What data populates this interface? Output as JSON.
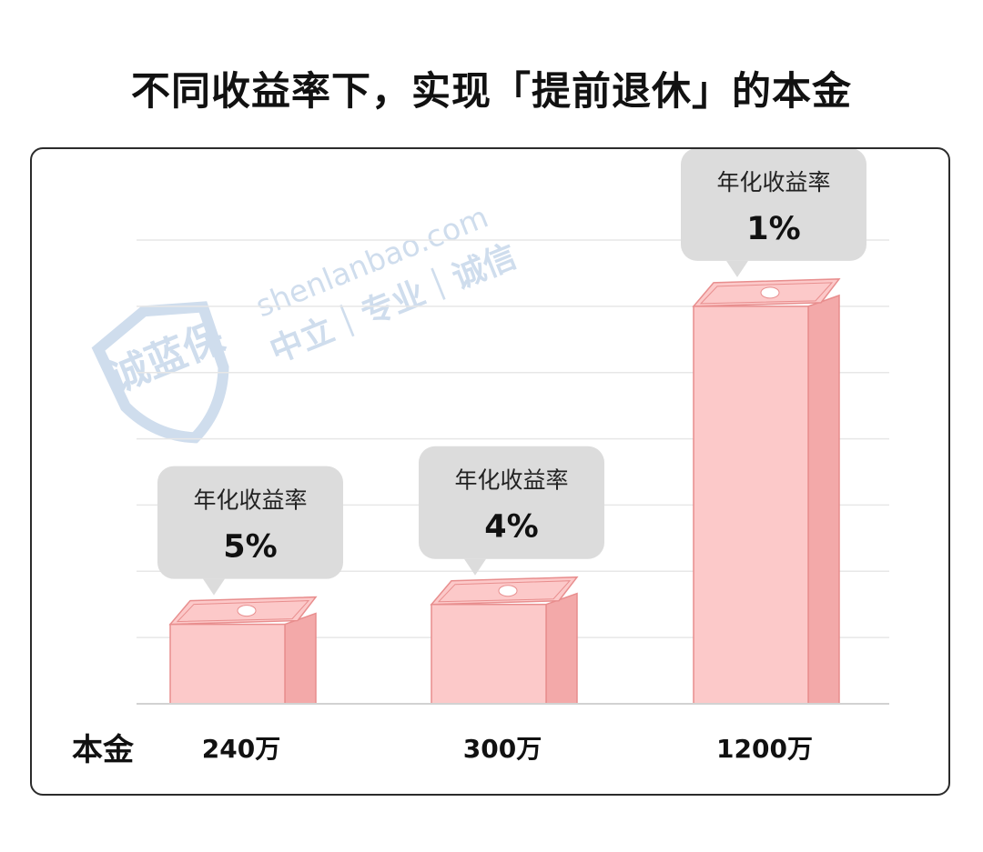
{
  "title": "不同收益率下，实现「提前退休」的本金",
  "watermark": {
    "logo_text": "诚蓝保",
    "site": "shenlanbao.com",
    "slogan": "中立｜专业｜诚信"
  },
  "colors": {
    "bar_front": "#fcc9c9",
    "bar_side": "#f3a9a9",
    "bar_stroke": "#e88e8e",
    "bubble_fill": "#dcdcdc",
    "grid": "#e7e7e7",
    "watermark": "#c7d7ea"
  },
  "chart_data": {
    "type": "bar",
    "xlabel": "本金",
    "categories": [
      "240万",
      "300万",
      "1200万"
    ],
    "values": [
      240,
      300,
      1200
    ],
    "unit": "万",
    "annotation_title": "年化收益率",
    "annotations": [
      "5%",
      "4%",
      "1%"
    ],
    "grid": true,
    "ylim": [
      0,
      1400
    ]
  }
}
